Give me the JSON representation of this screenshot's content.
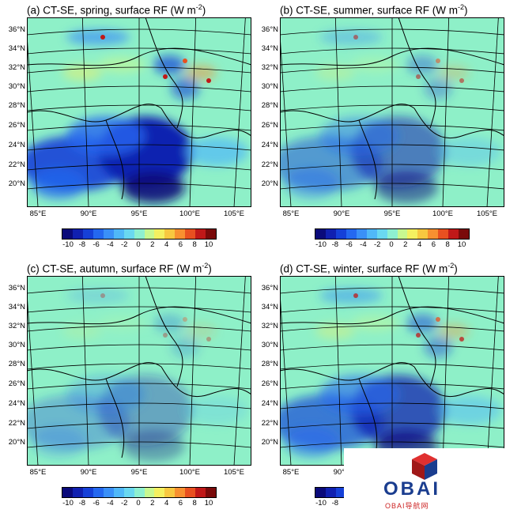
{
  "colorbar": {
    "ticks": [
      "-10",
      "-8",
      "-6",
      "-4",
      "-2",
      "0",
      "2",
      "4",
      "6",
      "8",
      "10"
    ],
    "colors": [
      "#0a0a7a",
      "#1020b0",
      "#1540d8",
      "#2468f0",
      "#3a90f8",
      "#50b8f8",
      "#6ad8f0",
      "#8ef0d0",
      "#c8f890",
      "#f4f060",
      "#f8c840",
      "#f89030",
      "#e85020",
      "#c01818",
      "#7a0a0a"
    ]
  },
  "lat_labels": [
    "36°N",
    "34°N",
    "32°N",
    "30°N",
    "28°N",
    "26°N",
    "24°N",
    "22°N",
    "20°N"
  ],
  "lon_labels": [
    "85°E",
    "90°E",
    "95°E",
    "100°E",
    "105°E"
  ],
  "panels": [
    {
      "label": "(a) CT-SE, spring, surface RF (W m",
      "sup": "-2",
      "tail": ")",
      "intensity": 1.0
    },
    {
      "label": "(b) CT-SE, summer, surface RF (W m",
      "sup": "-2",
      "tail": ")",
      "intensity": 0.55
    },
    {
      "label": "(c) CT-SE, autumn, surface RF (W m",
      "sup": "-2",
      "tail": ")",
      "intensity": 0.35
    },
    {
      "label": "(d) CT-SE, winter, surface RF (W m",
      "sup": "-2",
      "tail": ")",
      "intensity": 0.75
    }
  ],
  "logo": {
    "text": "OBAI",
    "sub": "OBAI导航网"
  }
}
